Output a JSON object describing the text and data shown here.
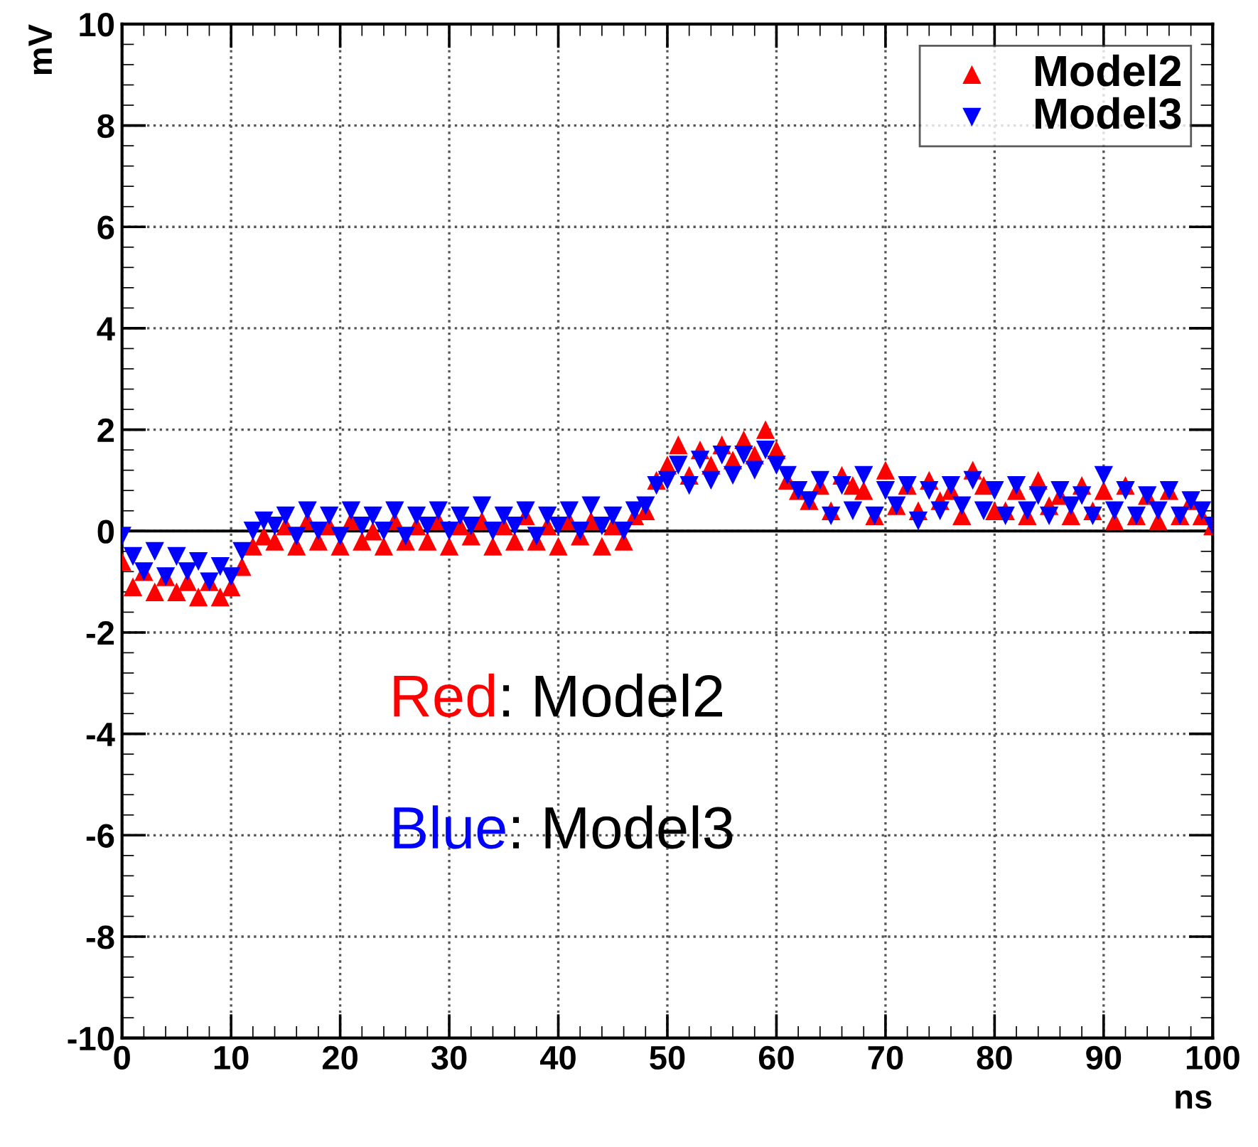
{
  "chart_data": {
    "type": "scatter",
    "xlabel": "ns",
    "ylabel": "mV",
    "x": [
      0,
      1,
      2,
      3,
      4,
      5,
      6,
      7,
      8,
      9,
      10,
      11,
      12,
      13,
      14,
      15,
      16,
      17,
      18,
      19,
      20,
      21,
      22,
      23,
      24,
      25,
      26,
      27,
      28,
      29,
      30,
      31,
      32,
      33,
      34,
      35,
      36,
      37,
      38,
      39,
      40,
      41,
      42,
      43,
      44,
      45,
      46,
      47,
      48,
      49,
      50,
      51,
      52,
      53,
      54,
      55,
      56,
      57,
      58,
      59,
      60,
      61,
      62,
      63,
      64,
      65,
      66,
      67,
      68,
      69,
      70,
      71,
      72,
      73,
      74,
      75,
      76,
      77,
      78,
      79,
      80,
      81,
      82,
      83,
      84,
      85,
      86,
      87,
      88,
      89,
      90,
      91,
      92,
      93,
      94,
      95,
      96,
      97,
      98,
      99,
      100
    ],
    "series": [
      {
        "name": "Model2",
        "color": "#ff0000",
        "marker": "triangle",
        "values": [
          -0.6,
          -1.1,
          -0.8,
          -1.2,
          -0.9,
          -1.2,
          -1.0,
          -1.3,
          -1.0,
          -1.3,
          -1.1,
          -0.7,
          -0.3,
          -0.1,
          -0.2,
          0.1,
          -0.3,
          0.2,
          -0.2,
          0.1,
          -0.3,
          0.2,
          -0.2,
          0.0,
          -0.3,
          0.2,
          -0.2,
          0.1,
          -0.2,
          0.2,
          -0.3,
          0.1,
          -0.1,
          0.2,
          -0.3,
          0.1,
          -0.2,
          0.3,
          -0.2,
          0.1,
          -0.3,
          0.2,
          -0.1,
          0.2,
          -0.3,
          0.1,
          -0.2,
          0.3,
          0.4,
          1.0,
          1.3,
          1.7,
          1.1,
          1.6,
          1.3,
          1.7,
          1.4,
          1.8,
          1.5,
          2.0,
          1.6,
          1.0,
          0.8,
          0.6,
          0.9,
          0.4,
          1.1,
          0.9,
          0.8,
          0.3,
          1.2,
          0.5,
          0.9,
          0.4,
          1.0,
          0.6,
          0.8,
          0.3,
          1.2,
          0.9,
          0.4,
          0.4,
          0.8,
          0.3,
          1.0,
          0.5,
          0.7,
          0.3,
          0.9,
          0.4,
          0.8,
          0.2,
          0.9,
          0.3,
          0.7,
          0.2,
          0.8,
          0.3,
          0.6,
          0.3,
          0.1
        ]
      },
      {
        "name": "Model3",
        "color": "#0000ff",
        "marker": "triangle_down",
        "values": [
          -0.1,
          -0.5,
          -0.8,
          -0.4,
          -0.9,
          -0.5,
          -0.8,
          -0.6,
          -1.0,
          -0.7,
          -0.9,
          -0.4,
          0.0,
          0.2,
          0.1,
          0.3,
          -0.1,
          0.4,
          0.0,
          0.3,
          -0.1,
          0.4,
          0.1,
          0.3,
          0.0,
          0.4,
          -0.1,
          0.3,
          0.1,
          0.4,
          0.0,
          0.3,
          0.1,
          0.5,
          0.0,
          0.3,
          0.1,
          0.4,
          -0.1,
          0.3,
          0.1,
          0.4,
          0.0,
          0.5,
          0.1,
          0.3,
          0.0,
          0.4,
          0.5,
          0.9,
          1.0,
          1.3,
          0.9,
          1.4,
          1.0,
          1.5,
          1.1,
          1.5,
          1.2,
          1.6,
          1.3,
          1.1,
          0.8,
          0.6,
          1.0,
          0.3,
          0.9,
          0.4,
          1.1,
          0.3,
          0.8,
          0.5,
          0.9,
          0.2,
          0.8,
          0.4,
          0.9,
          0.5,
          1.0,
          0.4,
          0.8,
          0.3,
          0.9,
          0.4,
          0.7,
          0.3,
          0.8,
          0.5,
          0.7,
          0.3,
          1.1,
          0.4,
          0.8,
          0.3,
          0.7,
          0.4,
          0.8,
          0.3,
          0.6,
          0.4,
          0.1
        ]
      }
    ],
    "xlim": [
      0,
      100
    ],
    "xticks": [
      0,
      10,
      20,
      30,
      40,
      50,
      60,
      70,
      80,
      90,
      100
    ],
    "ylim": [
      -10,
      10
    ],
    "yticks": [
      -10,
      -8,
      -6,
      -4,
      -2,
      0,
      2,
      4,
      6,
      8,
      10
    ],
    "ref_lines": [
      {
        "axis": "y",
        "value": 0,
        "color": "#000000"
      }
    ],
    "grid": true,
    "legend": "top right",
    "annotations": [
      "Red: Model2",
      "Blue: Model3"
    ]
  }
}
